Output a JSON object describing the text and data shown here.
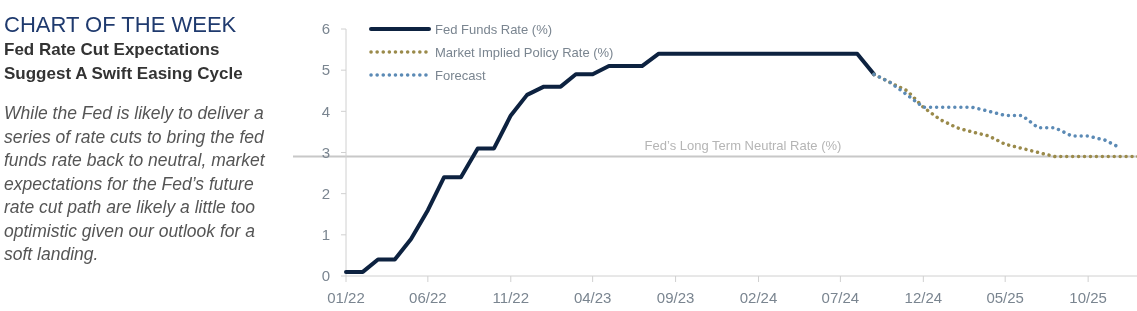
{
  "chart_data": {
    "type": "line",
    "title": "CHART OF THE WEEK",
    "subtitle": "Fed Rate Cut Expectations Suggest A Swift Easing Cycle",
    "annotations": [
      "While the Fed is likely to deliver a series of rate cuts to bring the fed funds rate back to neutral, market expectations for the Fed’s future rate cut path are likely a little too optimistic given our outlook for a soft landing."
    ],
    "series": [
      {
        "name": "Fed Funds Rate (%)",
        "color": "#0d2240",
        "line_style": "solid",
        "x": [
          "2022-01",
          "2022-02",
          "2022-03",
          "2022-04",
          "2022-05",
          "2022-06",
          "2022-07",
          "2022-08",
          "2022-09",
          "2022-10",
          "2022-11",
          "2022-12",
          "2023-01",
          "2023-02",
          "2023-03",
          "2023-04",
          "2023-05",
          "2023-06",
          "2023-07",
          "2023-08",
          "2023-09",
          "2023-10",
          "2023-11",
          "2023-12",
          "2024-01",
          "2024-02",
          "2024-03",
          "2024-04",
          "2024-05",
          "2024-06",
          "2024-07",
          "2024-08",
          "2024-09"
        ],
        "values": [
          0.1,
          0.1,
          0.4,
          0.4,
          0.9,
          1.6,
          2.4,
          2.4,
          3.1,
          3.1,
          3.9,
          4.4,
          4.6,
          4.6,
          4.9,
          4.9,
          5.1,
          5.1,
          5.1,
          5.4,
          5.4,
          5.4,
          5.4,
          5.4,
          5.4,
          5.4,
          5.4,
          5.4,
          5.4,
          5.4,
          5.4,
          5.4,
          4.9
        ]
      },
      {
        "name": "Market Implied Policy Rate (%)",
        "color": "#9a8a4a",
        "line_style": "dotted",
        "x": [
          "2024-09",
          "2024-10",
          "2024-11",
          "2024-12",
          "2025-01",
          "2025-02",
          "2025-03",
          "2025-04",
          "2025-05",
          "2025-06",
          "2025-07",
          "2025-08",
          "2025-09",
          "2025-10",
          "2025-11",
          "2025-12",
          "2026-01"
        ],
        "values": [
          4.9,
          4.7,
          4.5,
          4.1,
          3.8,
          3.6,
          3.5,
          3.4,
          3.2,
          3.1,
          3.0,
          2.9,
          2.9,
          2.9,
          2.9,
          2.9,
          2.9
        ]
      },
      {
        "name": "Forecast",
        "color": "#5b8ab5",
        "line_style": "dotted",
        "x": [
          "2024-09",
          "2024-10",
          "2024-11",
          "2024-12",
          "2025-01",
          "2025-02",
          "2025-03",
          "2025-04",
          "2025-05",
          "2025-06",
          "2025-07",
          "2025-08",
          "2025-09",
          "2025-10",
          "2025-11",
          "2025-12"
        ],
        "values": [
          4.9,
          4.7,
          4.4,
          4.1,
          4.1,
          4.1,
          4.1,
          4.0,
          3.9,
          3.9,
          3.6,
          3.6,
          3.4,
          3.4,
          3.3,
          3.1
        ]
      }
    ],
    "xlim": [
      "2022-01",
      "2026-01"
    ],
    "xticks": [
      {
        "value": "2022-01",
        "label": "01/22"
      },
      {
        "value": "2022-06",
        "label": "06/22"
      },
      {
        "value": "2022-11",
        "label": "11/22"
      },
      {
        "value": "2023-04",
        "label": "04/23"
      },
      {
        "value": "2023-09",
        "label": "09/23"
      },
      {
        "value": "2024-02",
        "label": "02/24"
      },
      {
        "value": "2024-07",
        "label": "07/24"
      },
      {
        "value": "2024-12",
        "label": "12/24"
      },
      {
        "value": "2025-05",
        "label": "05/25"
      },
      {
        "value": "2025-10",
        "label": "10/25"
      }
    ],
    "ylim": [
      0,
      6
    ],
    "yticks": [
      0,
      1,
      2,
      3,
      4,
      5,
      6
    ],
    "ref_lines": [
      {
        "axis": "y",
        "value": 2.9,
        "label": "Fed’s Long Term Neutral Rate (%)",
        "color": "#c8c8c8"
      }
    ],
    "grid": false,
    "legend": "top left",
    "marker": "none"
  }
}
